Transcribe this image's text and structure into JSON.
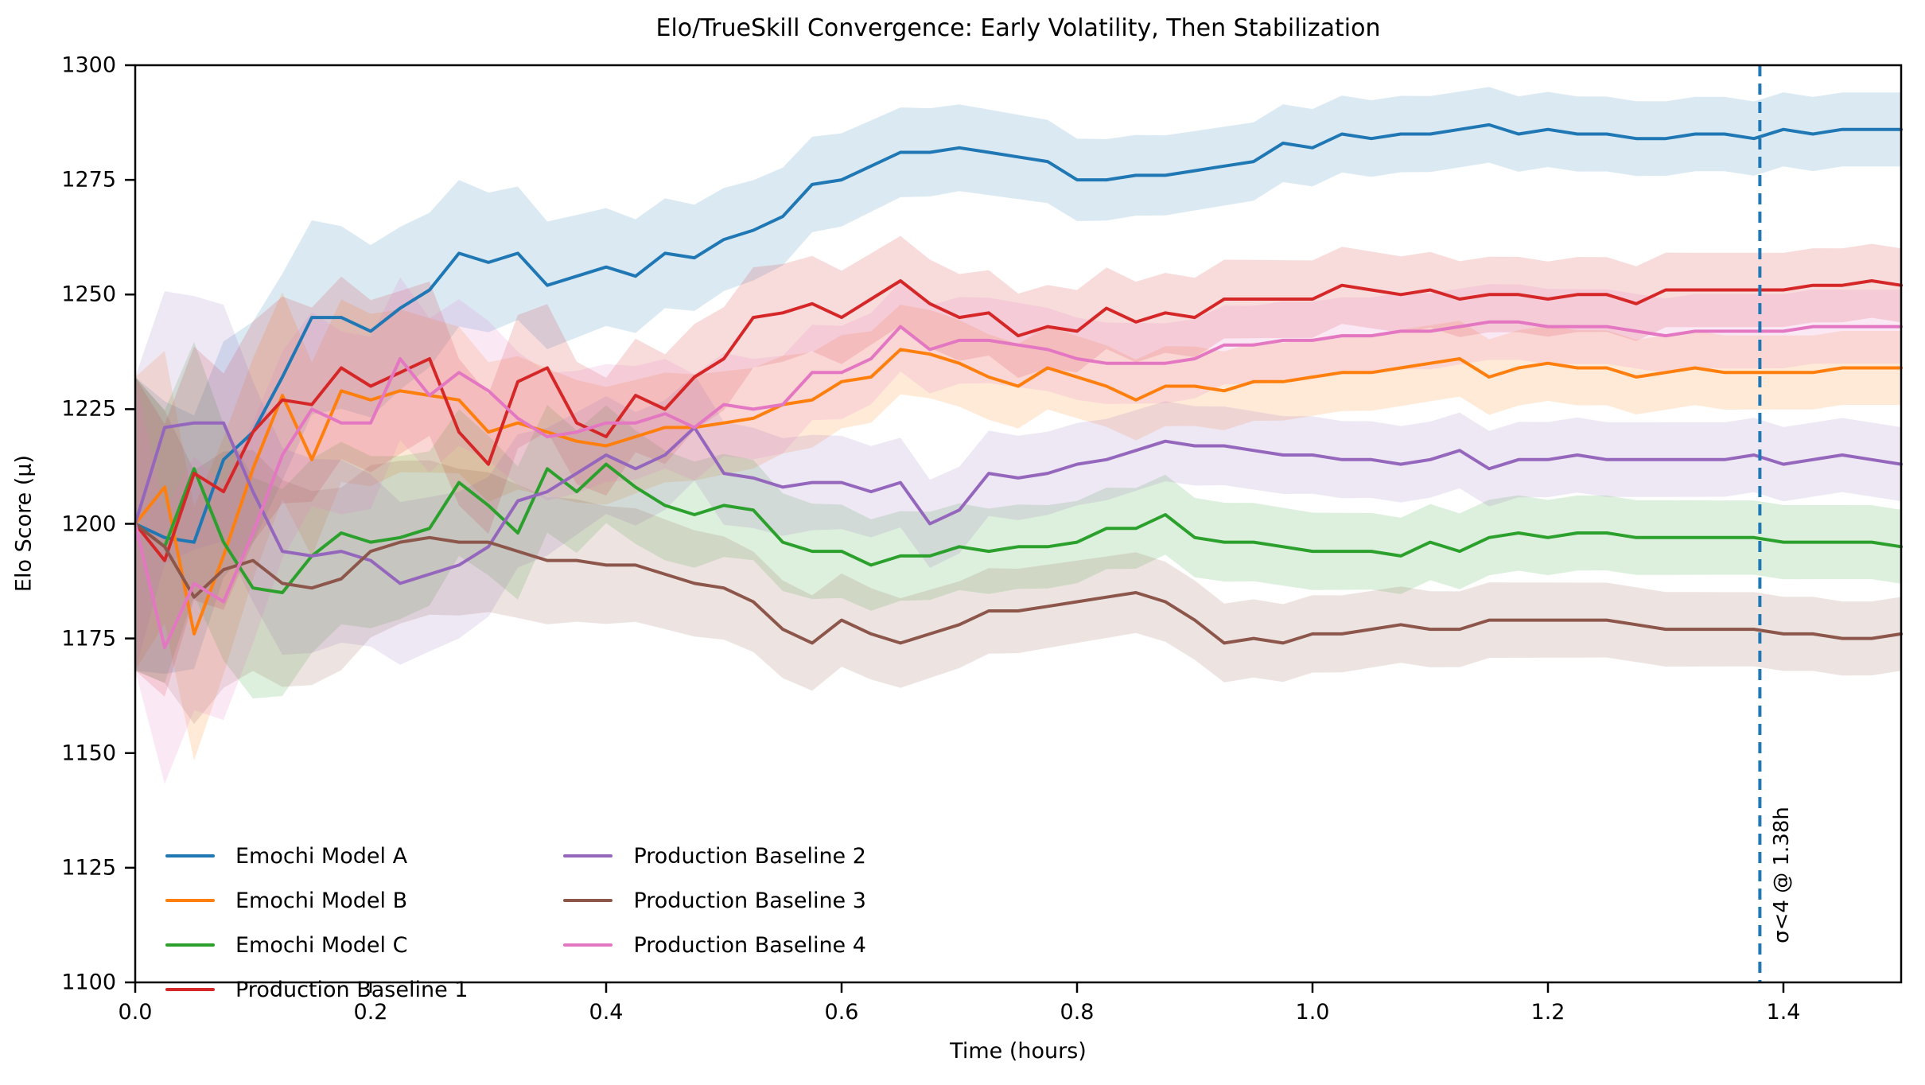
{
  "chart_data": {
    "type": "line",
    "title": "Elo/TrueSkill Convergence: Early Volatility, Then Stabilization",
    "xlabel": "Time (hours)",
    "ylabel": "Elo Score (μ)",
    "xlim": [
      0.0,
      1.5
    ],
    "ylim": [
      1100,
      1300
    ],
    "grid": "off",
    "x_tick_values": [
      0.0,
      0.2,
      0.4,
      0.6,
      0.8,
      1.0,
      1.2,
      1.4
    ],
    "x_tick_labels": [
      "0.0",
      "0.2",
      "0.4",
      "0.6",
      "0.8",
      "1.0",
      "1.2",
      "1.4"
    ],
    "y_tick_values": [
      1100,
      1125,
      1150,
      1175,
      1200,
      1225,
      1250,
      1275,
      1300
    ],
    "y_tick_labels": [
      "1100",
      "1125",
      "1150",
      "1175",
      "1200",
      "1225",
      "1250",
      "1275",
      "1300"
    ],
    "x_step_hours": 0.025,
    "x": [
      0.0,
      0.025,
      0.05,
      0.075,
      0.1,
      0.125,
      0.15,
      0.175,
      0.2,
      0.225,
      0.25,
      0.275,
      0.3,
      0.325,
      0.35,
      0.375,
      0.4,
      0.425,
      0.45,
      0.475,
      0.5,
      0.525,
      0.55,
      0.575,
      0.6,
      0.625,
      0.65,
      0.675,
      0.7,
      0.725,
      0.75,
      0.775,
      0.8,
      0.825,
      0.85,
      0.875,
      0.9,
      0.925,
      0.95,
      0.975,
      1.0,
      1.025,
      1.05,
      1.075,
      1.1,
      1.125,
      1.15,
      1.175,
      1.2,
      1.225,
      1.25,
      1.275,
      1.3,
      1.325,
      1.35,
      1.375,
      1.4,
      1.425,
      1.45,
      1.475,
      1.5
    ],
    "series": [
      {
        "name": "Emochi Model A",
        "color": "#1f77b4",
        "values": [
          1200,
          1197,
          1196,
          1214,
          1220,
          1232,
          1245,
          1245,
          1242,
          1247,
          1251,
          1259,
          1257,
          1259,
          1252,
          1254,
          1256,
          1254,
          1259,
          1258,
          1262,
          1264,
          1267,
          1274,
          1275,
          1278,
          1281,
          1281,
          1282,
          1281,
          1280,
          1279,
          1275,
          1275,
          1276,
          1276,
          1277,
          1278,
          1279,
          1283,
          1282,
          1285,
          1284,
          1285,
          1285,
          1286,
          1287,
          1285,
          1286,
          1285,
          1285,
          1284,
          1284,
          1285,
          1285,
          1284,
          1286,
          1285,
          1286,
          1286,
          1286
        ]
      },
      {
        "name": "Emochi Model B",
        "color": "#ff7f0e",
        "values": [
          1200,
          1208,
          1176,
          1193,
          1212,
          1228,
          1214,
          1229,
          1227,
          1229,
          1228,
          1227,
          1220,
          1222,
          1220,
          1218,
          1217,
          1219,
          1221,
          1221,
          1222,
          1223,
          1226,
          1227,
          1231,
          1232,
          1238,
          1237,
          1235,
          1232,
          1230,
          1234,
          1232,
          1230,
          1227,
          1230,
          1230,
          1229,
          1231,
          1231,
          1232,
          1233,
          1233,
          1234,
          1235,
          1236,
          1232,
          1234,
          1235,
          1234,
          1234,
          1232,
          1233,
          1234,
          1233,
          1233,
          1233,
          1233,
          1234,
          1234,
          1234
        ]
      },
      {
        "name": "Emochi Model C",
        "color": "#2ca02c",
        "values": [
          1200,
          1195,
          1212,
          1196,
          1186,
          1185,
          1193,
          1198,
          1196,
          1197,
          1199,
          1209,
          1204,
          1198,
          1212,
          1207,
          1213,
          1208,
          1204,
          1202,
          1204,
          1203,
          1196,
          1194,
          1194,
          1191,
          1193,
          1193,
          1195,
          1194,
          1195,
          1195,
          1196,
          1199,
          1199,
          1202,
          1197,
          1196,
          1196,
          1195,
          1194,
          1194,
          1194,
          1193,
          1196,
          1194,
          1197,
          1198,
          1197,
          1198,
          1198,
          1197,
          1197,
          1197,
          1197,
          1197,
          1196,
          1196,
          1196,
          1196,
          1195
        ]
      },
      {
        "name": "Production Baseline 1",
        "color": "#d62728",
        "values": [
          1200,
          1192,
          1211,
          1207,
          1220,
          1227,
          1226,
          1234,
          1230,
          1233,
          1236,
          1220,
          1213,
          1231,
          1234,
          1222,
          1219,
          1228,
          1225,
          1232,
          1236,
          1245,
          1246,
          1248,
          1245,
          1249,
          1253,
          1248,
          1245,
          1246,
          1241,
          1243,
          1242,
          1247,
          1244,
          1246,
          1245,
          1249,
          1249,
          1249,
          1249,
          1252,
          1251,
          1250,
          1251,
          1249,
          1250,
          1250,
          1249,
          1250,
          1250,
          1248,
          1251,
          1251,
          1251,
          1251,
          1251,
          1252,
          1252,
          1253,
          1252
        ]
      },
      {
        "name": "Production Baseline 2",
        "color": "#9467bd",
        "values": [
          1200,
          1221,
          1222,
          1222,
          1207,
          1194,
          1193,
          1194,
          1192,
          1187,
          1189,
          1191,
          1195,
          1205,
          1207,
          1211,
          1215,
          1212,
          1215,
          1221,
          1211,
          1210,
          1208,
          1209,
          1209,
          1207,
          1209,
          1200,
          1203,
          1211,
          1210,
          1211,
          1213,
          1214,
          1216,
          1218,
          1217,
          1217,
          1216,
          1215,
          1215,
          1214,
          1214,
          1213,
          1214,
          1216,
          1212,
          1214,
          1214,
          1215,
          1214,
          1214,
          1214,
          1214,
          1214,
          1215,
          1213,
          1214,
          1215,
          1214,
          1213
        ]
      },
      {
        "name": "Production Baseline 3",
        "color": "#8c564b",
        "values": [
          1200,
          1195,
          1184,
          1190,
          1192,
          1187,
          1186,
          1188,
          1194,
          1196,
          1197,
          1196,
          1196,
          1194,
          1192,
          1192,
          1191,
          1191,
          1189,
          1187,
          1186,
          1183,
          1177,
          1174,
          1179,
          1176,
          1174,
          1176,
          1178,
          1181,
          1181,
          1182,
          1183,
          1184,
          1185,
          1183,
          1179,
          1174,
          1175,
          1174,
          1176,
          1176,
          1177,
          1178,
          1177,
          1177,
          1179,
          1179,
          1179,
          1179,
          1179,
          1178,
          1177,
          1177,
          1177,
          1177,
          1176,
          1176,
          1175,
          1175,
          1176
        ]
      },
      {
        "name": "Production Baseline 4",
        "color": "#e377c2",
        "values": [
          1200,
          1173,
          1187,
          1183,
          1198,
          1215,
          1225,
          1222,
          1222,
          1236,
          1228,
          1233,
          1229,
          1223,
          1219,
          1220,
          1222,
          1222,
          1224,
          1221,
          1226,
          1225,
          1226,
          1233,
          1233,
          1236,
          1243,
          1238,
          1240,
          1240,
          1239,
          1238,
          1236,
          1235,
          1235,
          1235,
          1236,
          1239,
          1239,
          1240,
          1240,
          1241,
          1241,
          1242,
          1242,
          1243,
          1244,
          1244,
          1243,
          1243,
          1243,
          1242,
          1241,
          1242,
          1242,
          1242,
          1242,
          1243,
          1243,
          1243,
          1243
        ]
      }
    ],
    "uncertainty_band": {
      "style": "shaded envelope around each line",
      "halfwidth_elo_final": 8,
      "halfwidth_elo_extra_initial": 24,
      "decay_tau_hours": 0.25,
      "opacity": 0.16
    },
    "annotation": {
      "label": "σ<4 @ 1.38h",
      "x_hours": 1.38,
      "line_style": "dashed",
      "line_color": "#1f77b4",
      "text_rotation_deg": -90
    },
    "legend": {
      "position": "lower left",
      "columns": 2,
      "column1_indices": [
        0,
        1,
        2,
        3
      ],
      "column2_indices": [
        4,
        5,
        6
      ]
    }
  }
}
